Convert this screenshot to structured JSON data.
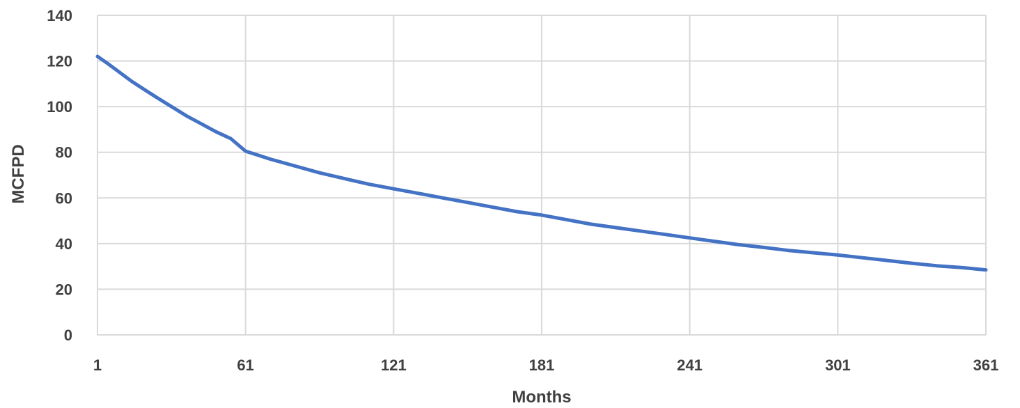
{
  "chart_data": {
    "type": "line",
    "title": "",
    "xlabel": "Months",
    "ylabel": "MCFPD",
    "x_ticks": [
      "1",
      "61",
      "121",
      "181",
      "241",
      "301",
      "361"
    ],
    "y_ticks": [
      "0",
      "20",
      "40",
      "60",
      "80",
      "100",
      "120",
      "140"
    ],
    "xlim": [
      1,
      361
    ],
    "ylim": [
      0,
      140
    ],
    "grid": true,
    "legend": "none",
    "line_color": "#4472c4",
    "grid_color": "#d9d9d9",
    "series": [
      {
        "x": [
          1,
          5,
          10,
          15,
          20,
          25,
          31,
          37,
          43,
          49,
          55,
          61,
          71,
          81,
          91,
          101,
          111,
          121,
          131,
          141,
          151,
          161,
          171,
          181,
          191,
          201,
          211,
          221,
          231,
          241,
          251,
          261,
          271,
          281,
          291,
          301,
          311,
          321,
          331,
          341,
          351,
          361
        ],
        "y": [
          122,
          119,
          115,
          111,
          107.5,
          104,
          100,
          96,
          92.5,
          89,
          86,
          80.5,
          77,
          74,
          71,
          68.5,
          66,
          64,
          62,
          60,
          58,
          56,
          54,
          52.5,
          50.5,
          48.5,
          47,
          45.5,
          44,
          42.5,
          41,
          39.5,
          38.3,
          37,
          36,
          35,
          33.8,
          32.6,
          31.4,
          30.3,
          29.5,
          28.5
        ]
      }
    ]
  }
}
